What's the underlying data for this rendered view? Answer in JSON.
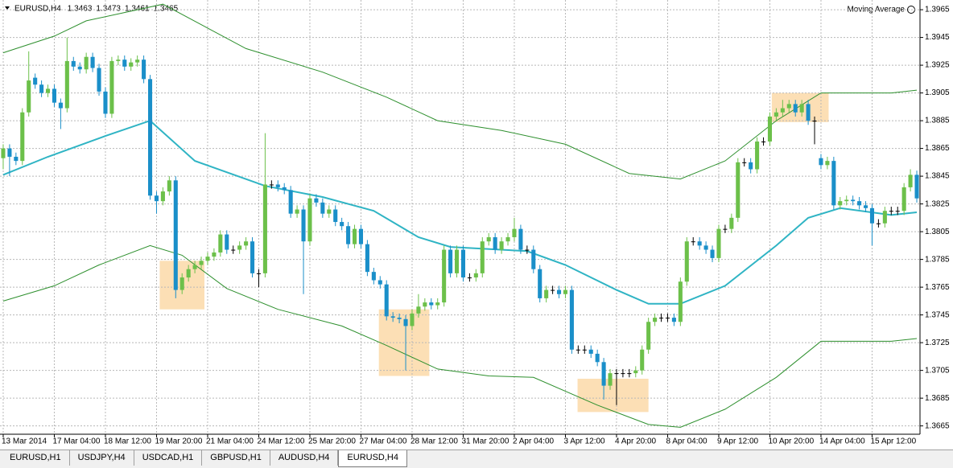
{
  "chart_data": {
    "type": "candlestick",
    "title": "EURUSD,H4",
    "header_ohlc": [
      1.3463,
      1.3473,
      1.3461,
      1.3465
    ],
    "indicator_label": "Moving Average",
    "up_color": "#6cc04a",
    "down_color": "#1a8fc9",
    "xlim": [
      -0.5,
      143.5
    ],
    "ylim": [
      1.3659,
      1.3972
    ],
    "yticks": [
      1.3965,
      1.3945,
      1.3925,
      1.3905,
      1.3885,
      1.3865,
      1.3845,
      1.3825,
      1.3805,
      1.3785,
      1.3765,
      1.3745,
      1.3725,
      1.3705,
      1.3685,
      1.3665
    ],
    "xticks": [
      {
        "value": 0,
        "label": "13 Mar 2014"
      },
      {
        "value": 8,
        "label": "17 Mar 04:00"
      },
      {
        "value": 16,
        "label": "18 Mar 12:00"
      },
      {
        "value": 24,
        "label": "19 Mar 20:00"
      },
      {
        "value": 32,
        "label": "21 Mar 04:00"
      },
      {
        "value": 40,
        "label": "24 Mar 12:00"
      },
      {
        "value": 48,
        "label": "25 Mar 20:00"
      },
      {
        "value": 56,
        "label": "27 Mar 04:00"
      },
      {
        "value": 64,
        "label": "28 Mar 12:00"
      },
      {
        "value": 72,
        "label": "31 Mar 20:00"
      },
      {
        "value": 80,
        "label": "2 Apr 04:00"
      },
      {
        "value": 88,
        "label": "3 Apr 12:00"
      },
      {
        "value": 96,
        "label": "4 Apr 20:00"
      },
      {
        "value": 104,
        "label": "8 Apr 04:00"
      },
      {
        "value": 112,
        "label": "9 Apr 12:00"
      },
      {
        "value": 120,
        "label": "10 Apr 20:00"
      },
      {
        "value": 128,
        "label": "14 Apr 04:00"
      },
      {
        "value": 136,
        "label": "15 Apr 12:00"
      }
    ],
    "grid": true,
    "open": [
      1.3858,
      1.3865,
      1.3859,
      1.3856,
      1.3891,
      1.3916,
      1.3911,
      1.3905,
      1.3908,
      1.3898,
      1.3894,
      1.3928,
      1.3924,
      1.3922,
      1.3931,
      1.3923,
      1.3906,
      1.389,
      1.3928,
      1.3929,
      1.3924,
      1.3927,
      1.3929,
      1.3915,
      1.3831,
      1.3827,
      1.3834,
      1.3842,
      1.3763,
      1.3772,
      1.3778,
      1.3781,
      1.3784,
      1.3787,
      1.379,
      1.3803,
      1.3792,
      1.3792,
      1.3795,
      1.3798,
      1.3775,
      1.3775,
      1.3839,
      1.3839,
      1.3837,
      1.3835,
      1.3818,
      1.3821,
      1.3798,
      1.3829,
      1.3826,
      1.3818,
      1.3821,
      1.3812,
      1.3809,
      1.3796,
      1.3807,
      1.3796,
      1.3776,
      1.377,
      1.3767,
      1.3744,
      1.3743,
      1.3742,
      1.3737,
      1.3746,
      1.3751,
      1.3754,
      1.3752,
      1.3754,
      1.3792,
      1.3775,
      1.3792,
      1.3772,
      1.3772,
      1.3775,
      1.3798,
      1.3801,
      1.3792,
      1.3798,
      1.3801,
      1.3807,
      1.3792,
      1.3792,
      1.3778,
      1.3757,
      1.3763,
      1.3763,
      1.376,
      1.3763,
      1.372,
      1.372,
      1.372,
      1.3717,
      1.3711,
      1.3694,
      1.3703,
      1.3703,
      1.3703,
      1.3703,
      1.3705,
      1.372,
      1.374,
      1.3743,
      1.3743,
      1.3743,
      1.374,
      1.3769,
      1.3798,
      1.3798,
      1.3795,
      1.3792,
      1.3786,
      1.3807,
      1.3807,
      1.3815,
      1.3855,
      1.3855,
      1.385,
      1.387,
      1.387,
      1.3888,
      1.3891,
      1.3894,
      1.3897,
      1.3891,
      1.3897,
      1.3885,
      1.3858,
      1.3853,
      1.3856,
      1.3824,
      1.3827,
      1.3828,
      1.3827,
      1.3824,
      1.3822,
      1.3811,
      1.3811,
      1.382,
      1.382,
      1.382,
      1.3837,
      1.3846
    ],
    "high": [
      1.3868,
      1.3868,
      1.3862,
      1.3894,
      1.3935,
      1.3919,
      1.3914,
      1.3911,
      1.3911,
      1.3901,
      1.3945,
      1.3931,
      1.3927,
      1.3934,
      1.3934,
      1.3926,
      1.3909,
      1.3931,
      1.3932,
      1.3932,
      1.393,
      1.3932,
      1.3932,
      1.3918,
      1.3834,
      1.3837,
      1.3845,
      1.3845,
      1.3775,
      1.3781,
      1.3784,
      1.3787,
      1.379,
      1.3793,
      1.3806,
      1.3806,
      1.3795,
      1.3798,
      1.3801,
      1.3801,
      1.3778,
      1.3876,
      1.3842,
      1.3842,
      1.384,
      1.3838,
      1.3824,
      1.3824,
      1.3832,
      1.3832,
      1.3829,
      1.3824,
      1.3824,
      1.3815,
      1.3812,
      1.381,
      1.381,
      1.3799,
      1.3779,
      1.3773,
      1.377,
      1.3747,
      1.3746,
      1.3745,
      1.3749,
      1.376,
      1.3757,
      1.3757,
      1.3757,
      1.3795,
      1.3795,
      1.3795,
      1.3795,
      1.3775,
      1.3778,
      1.3801,
      1.3804,
      1.3804,
      1.3801,
      1.3804,
      1.3815,
      1.381,
      1.3795,
      1.3795,
      1.3781,
      1.3766,
      1.3766,
      1.3766,
      1.3766,
      1.3766,
      1.3723,
      1.3723,
      1.3723,
      1.372,
      1.3714,
      1.3706,
      1.3706,
      1.3706,
      1.3706,
      1.3708,
      1.3723,
      1.3743,
      1.3746,
      1.3746,
      1.3746,
      1.3746,
      1.3772,
      1.3801,
      1.3801,
      1.3801,
      1.3798,
      1.3795,
      1.381,
      1.381,
      1.3818,
      1.3858,
      1.3858,
      1.3858,
      1.3873,
      1.3873,
      1.3891,
      1.3894,
      1.39,
      1.39,
      1.39,
      1.39,
      1.39,
      1.3888,
      1.3861,
      1.3859,
      1.3859,
      1.383,
      1.3831,
      1.3831,
      1.383,
      1.3827,
      1.3825,
      1.3814,
      1.3823,
      1.3823,
      1.3823,
      1.384,
      1.385,
      1.3849
    ],
    "low": [
      1.385,
      1.3845,
      1.3853,
      1.3853,
      1.3888,
      1.3908,
      1.3902,
      1.3902,
      1.3895,
      1.3879,
      1.3891,
      1.3921,
      1.3919,
      1.3919,
      1.392,
      1.3903,
      1.3887,
      1.3887,
      1.3925,
      1.3921,
      1.3921,
      1.3924,
      1.3912,
      1.3828,
      1.3818,
      1.3824,
      1.3831,
      1.3757,
      1.376,
      1.3769,
      1.3775,
      1.3778,
      1.3781,
      1.3784,
      1.3787,
      1.3789,
      1.3789,
      1.3789,
      1.3792,
      1.3772,
      1.3765,
      1.3772,
      1.3836,
      1.3834,
      1.3832,
      1.3815,
      1.3815,
      1.376,
      1.3795,
      1.3823,
      1.3815,
      1.3815,
      1.3809,
      1.3806,
      1.3793,
      1.3793,
      1.3793,
      1.3773,
      1.3767,
      1.3764,
      1.3741,
      1.374,
      1.3739,
      1.3705,
      1.3734,
      1.3743,
      1.3748,
      1.3749,
      1.3749,
      1.3751,
      1.3772,
      1.3772,
      1.3769,
      1.3769,
      1.3769,
      1.3772,
      1.3795,
      1.3789,
      1.3789,
      1.3795,
      1.3798,
      1.3789,
      1.3789,
      1.3775,
      1.3754,
      1.3754,
      1.376,
      1.3757,
      1.3757,
      1.3717,
      1.3717,
      1.3717,
      1.3714,
      1.3708,
      1.3684,
      1.3691,
      1.368,
      1.37,
      1.37,
      1.37,
      1.3702,
      1.3717,
      1.3737,
      1.374,
      1.374,
      1.3737,
      1.3737,
      1.3766,
      1.3795,
      1.3792,
      1.3789,
      1.3783,
      1.3783,
      1.3804,
      1.3804,
      1.3812,
      1.3852,
      1.3847,
      1.3847,
      1.3867,
      1.3867,
      1.3885,
      1.3888,
      1.3891,
      1.3888,
      1.3888,
      1.3882,
      1.3868,
      1.385,
      1.385,
      1.3821,
      1.3821,
      1.3824,
      1.3824,
      1.3821,
      1.3819,
      1.3795,
      1.3808,
      1.3808,
      1.3817,
      1.3817,
      1.3817,
      1.3834,
      1.3826
    ],
    "close": [
      1.3865,
      1.3859,
      1.3856,
      1.3891,
      1.3914,
      1.3911,
      1.3905,
      1.3908,
      1.3898,
      1.3894,
      1.3928,
      1.3924,
      1.3922,
      1.3931,
      1.3923,
      1.3906,
      1.389,
      1.3928,
      1.3929,
      1.3924,
      1.3927,
      1.3929,
      1.3915,
      1.3831,
      1.3827,
      1.3834,
      1.3842,
      1.3763,
      1.3772,
      1.3778,
      1.3781,
      1.3784,
      1.3787,
      1.379,
      1.3803,
      1.3792,
      1.3792,
      1.3795,
      1.3798,
      1.3775,
      1.3775,
      1.3839,
      1.3839,
      1.3837,
      1.3835,
      1.3818,
      1.3821,
      1.3798,
      1.3829,
      1.3826,
      1.3818,
      1.3821,
      1.3812,
      1.3809,
      1.3796,
      1.3807,
      1.3796,
      1.3776,
      1.377,
      1.3767,
      1.3744,
      1.3743,
      1.3742,
      1.3737,
      1.3746,
      1.3751,
      1.3754,
      1.3752,
      1.3754,
      1.3792,
      1.3775,
      1.3792,
      1.3772,
      1.3772,
      1.3775,
      1.3798,
      1.3801,
      1.3792,
      1.3798,
      1.3801,
      1.3807,
      1.3792,
      1.3792,
      1.3778,
      1.3757,
      1.3763,
      1.3763,
      1.376,
      1.3763,
      1.372,
      1.372,
      1.372,
      1.3717,
      1.3711,
      1.3694,
      1.3703,
      1.3703,
      1.3703,
      1.3703,
      1.3705,
      1.372,
      1.374,
      1.3743,
      1.3743,
      1.3743,
      1.374,
      1.3769,
      1.3798,
      1.3798,
      1.3795,
      1.3792,
      1.3786,
      1.3807,
      1.3807,
      1.3815,
      1.3855,
      1.3855,
      1.385,
      1.387,
      1.387,
      1.3888,
      1.3891,
      1.3894,
      1.3897,
      1.3891,
      1.3897,
      1.3885,
      1.3885,
      1.3853,
      1.3856,
      1.3824,
      1.3827,
      1.3828,
      1.3827,
      1.3824,
      1.3822,
      1.3811,
      1.3811,
      1.382,
      1.382,
      1.382,
      1.3837,
      1.3846,
      1.3829
    ],
    "lines": [
      {
        "color": "#2fb4c4",
        "width": 2,
        "x": [
          0,
          7,
          16,
          23,
          30,
          41,
          50,
          58,
          65,
          70,
          82,
          88,
          96,
          101,
          106,
          113,
          121,
          126,
          131,
          139,
          143
        ],
        "values": [
          1.3846,
          1.3859,
          1.3874,
          1.3885,
          1.3856,
          1.3838,
          1.383,
          1.382,
          1.3801,
          1.3794,
          1.3791,
          1.3781,
          1.3763,
          1.3753,
          1.3753,
          1.3766,
          1.3795,
          1.3815,
          1.3822,
          1.3817,
          1.3819
        ]
      },
      {
        "color": "#2d8f2d",
        "width": 1,
        "x": [
          0,
          8,
          13,
          25,
          38,
          50,
          60,
          68,
          78,
          88,
          98,
          106,
          113,
          121,
          128,
          139,
          143
        ],
        "values": [
          1.3934,
          1.3946,
          1.3957,
          1.3969,
          1.3937,
          1.392,
          1.3902,
          1.3885,
          1.3878,
          1.3868,
          1.3847,
          1.3843,
          1.3856,
          1.3885,
          1.3905,
          1.3905,
          1.3907
        ]
      },
      {
        "color": "#2d8f2d",
        "width": 1,
        "x": [
          0,
          8,
          15,
          23,
          28,
          35,
          43,
          53,
          60,
          68,
          76,
          83,
          93,
          101,
          106,
          113,
          121,
          128,
          139,
          143
        ],
        "values": [
          1.3755,
          1.3766,
          1.3781,
          1.3795,
          1.3788,
          1.3764,
          1.3749,
          1.3737,
          1.3723,
          1.3706,
          1.3701,
          1.37,
          1.368,
          1.3666,
          1.3664,
          1.3677,
          1.37,
          1.3726,
          1.3726,
          1.3728
        ]
      }
    ],
    "highlight_color": "#fbd9a8",
    "highlights": [
      {
        "x": [
          24.5,
          31.5
        ],
        "y": [
          1.3749,
          1.3784
        ]
      },
      {
        "x": [
          58.8,
          66.7
        ],
        "y": [
          1.3701,
          1.3749
        ]
      },
      {
        "x": [
          89.9,
          101
        ],
        "y": [
          1.3675,
          1.3699
        ]
      },
      {
        "x": [
          120.3,
          129.2
        ],
        "y": [
          1.3884,
          1.3905
        ]
      }
    ]
  },
  "tabs": {
    "items": [
      "EURUSD,H1",
      "USDJPY,H4",
      "USDCAD,H1",
      "GBPUSD,H1",
      "AUDUSD,H4",
      "EURUSD,H4"
    ],
    "active": 5
  }
}
